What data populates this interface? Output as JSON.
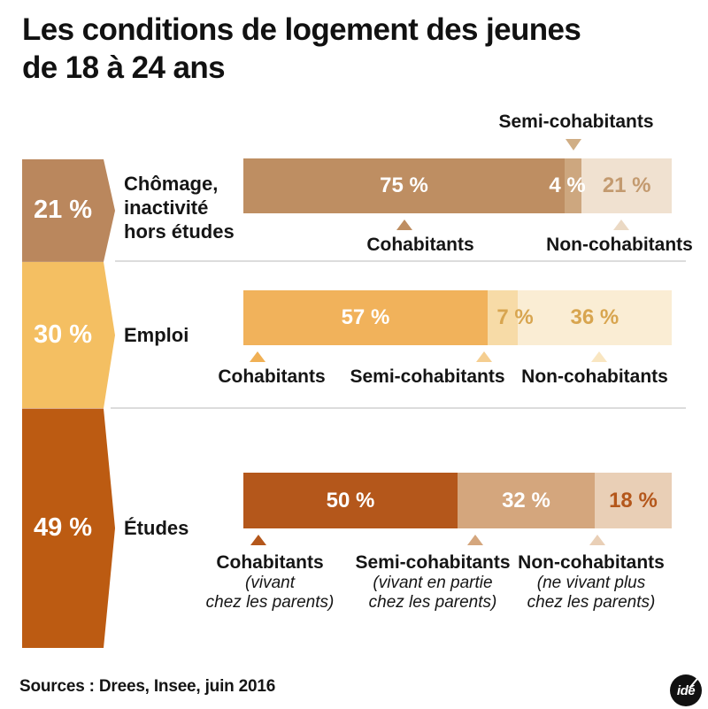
{
  "title": {
    "lines": [
      "Les conditions de logement des jeunes",
      "de 18 à 24 ans"
    ]
  },
  "legend_top": "Semi-cohabitants",
  "rows": [
    {
      "category": "Chômage, inactivité hors études",
      "left_percent": "21 %",
      "label_lines": [
        "Chômage,",
        "inactivité",
        "hors études"
      ],
      "values": [
        "75 %",
        "4 %",
        "21 %"
      ],
      "annotations": {
        "cohabitants": "Cohabitants",
        "non_cohabitants": "Non-cohabitants"
      }
    },
    {
      "category": "Emploi",
      "left_percent": "30 %",
      "label_lines": [
        "Emploi"
      ],
      "values": [
        "57 %",
        "7 %",
        "36 %"
      ],
      "annotations": {
        "cohabitants": "Cohabitants",
        "semi_cohabitants": "Semi-cohabitants",
        "non_cohabitants": "Non-cohabitants"
      }
    },
    {
      "category": "Études",
      "left_percent": "49 %",
      "label_lines": [
        "Études"
      ],
      "values": [
        "50 %",
        "32 %",
        "18 %"
      ],
      "annotations": {
        "cohabitants": {
          "label": "Cohabitants",
          "sub": [
            "(vivant",
            "chez les parents)"
          ]
        },
        "semi_cohabitants": {
          "label": "Semi-cohabitants",
          "sub": [
            "(vivant en partie",
            "chez les parents)"
          ]
        },
        "non_cohabitants": {
          "label": "Non-cohabitants",
          "sub": [
            "(ne vivant plus",
            "chez les parents)"
          ]
        }
      }
    }
  ],
  "footer": {
    "source": "Sources : Drees, Insee, juin 2016",
    "logo": "idé"
  },
  "colors": {
    "text": "#151515",
    "separator": "#DCDCDC",
    "left_column": [
      "#BA875D",
      "#F4BF62",
      "#BC5B12"
    ],
    "bars": [
      [
        "#BE8E62",
        "#CDA77F",
        "#F0E1D0"
      ],
      [
        "#F1B25B",
        "#F7DBA7",
        "#FAEDD4"
      ],
      [
        "#B4571B",
        "#D4A67D",
        "#E9CFB6"
      ]
    ],
    "triangles": {
      "row1": [
        "#BE8E62",
        "#D0AE85",
        "#EBD9C4"
      ],
      "row2": [
        "#F0B055",
        "#F5CE90",
        "#F9E6C1"
      ],
      "row3": [
        "#B4571B",
        "#D4A67D",
        "#E9CFB6"
      ]
    },
    "value_text": {
      "white": "#FFFFFF",
      "row1_non": "#C39A6F",
      "row2_gold": "#D8A54F",
      "row3_non": "#B4571B"
    }
  },
  "chart_data": {
    "type": "bar",
    "stacked": true,
    "orientation": "horizontal",
    "unit": "%",
    "title": "Les conditions de logement des jeunes de 18 à 24 ans",
    "series_labels": [
      "Cohabitants",
      "Semi-cohabitants",
      "Non-cohabitants"
    ],
    "series_sublabels": [
      "(vivant chez les parents)",
      "(vivant en partie chez les parents)",
      "(ne vivant plus chez les parents)"
    ],
    "categories": [
      "Chômage, inactivité hors études",
      "Emploi",
      "Études"
    ],
    "category_shares": [
      21,
      30,
      49
    ],
    "values": [
      [
        75,
        4,
        21
      ],
      [
        57,
        7,
        36
      ],
      [
        50,
        32,
        18
      ]
    ],
    "xlim": [
      0,
      100
    ],
    "legend_position": "around-bars",
    "source": "Sources : Drees, Insee, juin 2016"
  }
}
